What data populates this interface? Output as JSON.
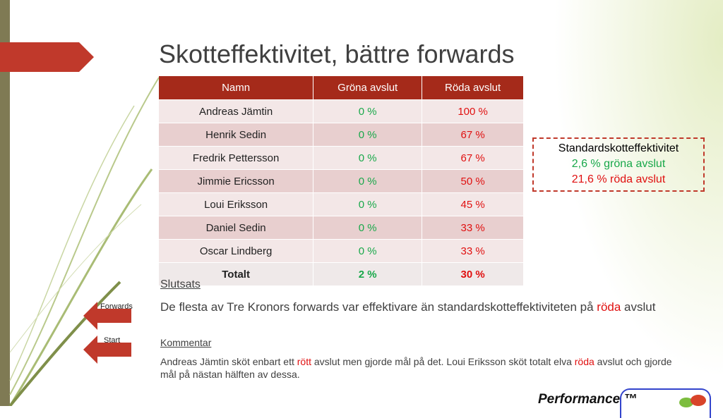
{
  "slide": {
    "title": "Skotteffektivitet, bättre forwards"
  },
  "table": {
    "headers": [
      "Namn",
      "Gröna avslut",
      "Röda avslut"
    ],
    "rows": [
      {
        "name": "Andreas Jämtin",
        "green": "0 %",
        "red": "100 %"
      },
      {
        "name": "Henrik Sedin",
        "green": "0 %",
        "red": "67 %"
      },
      {
        "name": "Fredrik Pettersson",
        "green": "0 %",
        "red": "67 %"
      },
      {
        "name": "Jimmie Ericsson",
        "green": "0 %",
        "red": "50 %"
      },
      {
        "name": "Loui Eriksson",
        "green": "0 %",
        "red": "45 %"
      },
      {
        "name": "Daniel Sedin",
        "green": "0 %",
        "red": "33 %"
      },
      {
        "name": "Oscar Lindberg",
        "green": "0 %",
        "red": "33 %"
      }
    ],
    "total": {
      "name": "Totalt",
      "green": "2 %",
      "red": "30 %"
    }
  },
  "standard_box": {
    "title": "Standardskotteffektivitet",
    "green_line": "2,6 % gröna avslut",
    "red_line": "21,6 % röda avslut"
  },
  "conclusion": {
    "heading": "Slutsats",
    "text_before": "De flesta av Tre Kronors forwards var effektivare än standardskotteffektiviteten på ",
    "highlight": "röda",
    "text_after": " avslut"
  },
  "comment": {
    "heading": "Kommentar",
    "part1": "Andreas Jämtin sköt enbart ett ",
    "hl1": "rött",
    "part2": " avslut men gjorde mål på det. Loui Eriksson sköt totalt elva ",
    "hl2": "röda",
    "part3": " avslut och gjorde mål på nästan hälften av dessa."
  },
  "nav": {
    "forwards_label": "Forwards",
    "start_label": "Start"
  },
  "logo": {
    "text": "Performance ™"
  },
  "colors": {
    "accent": "#c0392b",
    "header_bg": "#a52a1a",
    "green": "#18a84a",
    "red": "#e01010"
  }
}
